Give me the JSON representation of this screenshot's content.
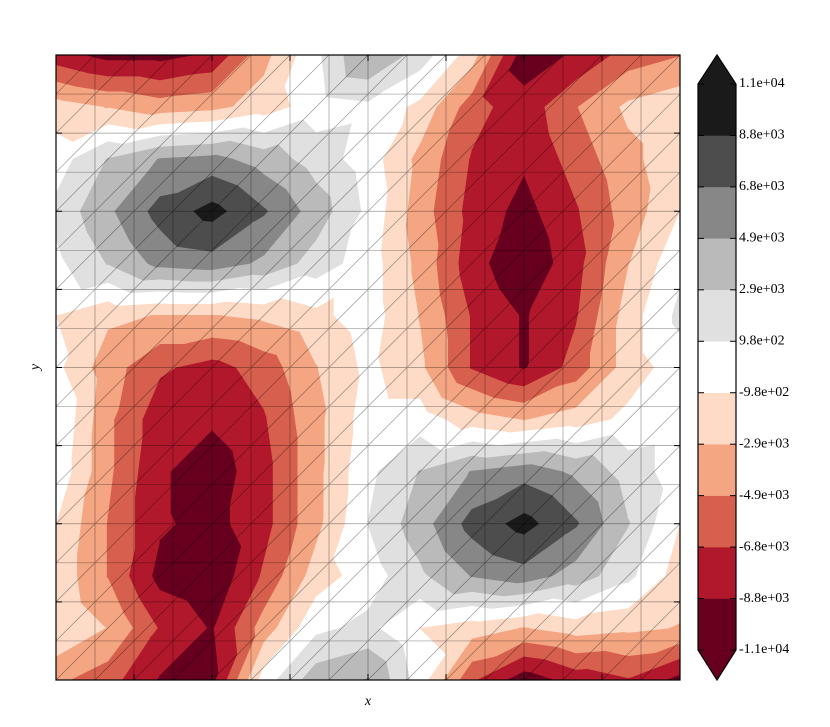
{
  "chart_data": {
    "type": "contourf",
    "x_label": "x",
    "y_label": "y",
    "z": [
      [
        -8000,
        -9500,
        -9500,
        -8500,
        -3500,
        500,
        5000,
        2000,
        -2000,
        -10000,
        -8500,
        -6000,
        -5000
      ],
      [
        -2000,
        -3000,
        -4000,
        -3500,
        -2000,
        0,
        500,
        -1500,
        -6000,
        -8000,
        -5000,
        -2500,
        -1500
      ],
      [
        0,
        3000,
        5000,
        5500,
        4000,
        2000,
        0,
        -3500,
        -7000,
        -8500,
        -6000,
        -3500,
        -1500
      ],
      [
        1500,
        4500,
        7500,
        9500,
        7000,
        4000,
        500,
        -4000,
        -7500,
        -9500,
        -7000,
        -4000,
        -1000
      ],
      [
        500,
        3000,
        5500,
        6000,
        4500,
        2000,
        0,
        -3500,
        -8000,
        -10500,
        -7500,
        -3000,
        500
      ],
      [
        -1000,
        -2500,
        -3000,
        -3000,
        -2500,
        -1500,
        0,
        -3000,
        -7000,
        -9000,
        -7000,
        -2000,
        1500
      ],
      [
        -500,
        -4000,
        -6500,
        -7500,
        -6000,
        -3000,
        -500,
        -2500,
        -7000,
        -9000,
        -6000,
        -2000,
        0
      ],
      [
        1000,
        -4500,
        -8000,
        -8500,
        -7000,
        -3500,
        0,
        0,
        -2000,
        -3000,
        -2000,
        -500,
        0
      ],
      [
        500,
        -4500,
        -8500,
        -10000,
        -7500,
        -3500,
        500,
        3000,
        5000,
        6000,
        4500,
        2000,
        0
      ],
      [
        -1000,
        -5000,
        -8500,
        -9500,
        -7500,
        -3500,
        1000,
        4000,
        7500,
        9500,
        7000,
        3000,
        -1000
      ],
      [
        -1500,
        -5000,
        -9500,
        -10500,
        -6500,
        -2000,
        0,
        2500,
        5000,
        6000,
        4000,
        1500,
        -2000
      ],
      [
        -1000,
        -3000,
        -7000,
        -9000,
        -4000,
        500,
        1500,
        -1000,
        -2000,
        -3000,
        -2000,
        -2500,
        -3000
      ],
      [
        -4500,
        -6000,
        -9000,
        -9500,
        0,
        4000,
        5000,
        0,
        -6500,
        -10000,
        -8000,
        -7000,
        -9500
      ]
    ],
    "levels": [
      {
        "value": -11000,
        "label": "-1.1e+04"
      },
      {
        "value": -8800,
        "label": "-8.8e+03"
      },
      {
        "value": -6800,
        "label": "-6.8e+03"
      },
      {
        "value": -4900,
        "label": "-4.9e+03"
      },
      {
        "value": -2900,
        "label": "-2.9e+03"
      },
      {
        "value": -980,
        "label": "-9.8e+02"
      },
      {
        "value": 980,
        "label": "9.8e+02"
      },
      {
        "value": 2900,
        "label": "2.9e+03"
      },
      {
        "value": 4900,
        "label": "4.9e+03"
      },
      {
        "value": 6800,
        "label": "6.8e+03"
      },
      {
        "value": 8800,
        "label": "8.8e+03"
      },
      {
        "value": 11000,
        "label": "1.1e+04"
      }
    ],
    "colors": [
      "#67001f",
      "#b2182b",
      "#d6604d",
      "#f4a582",
      "#fddbc7",
      "#ffffff",
      "#e0e0e0",
      "#bababa",
      "#878787",
      "#4d4d4d",
      "#1a1a1a"
    ],
    "extend": "both",
    "mesh": true
  }
}
